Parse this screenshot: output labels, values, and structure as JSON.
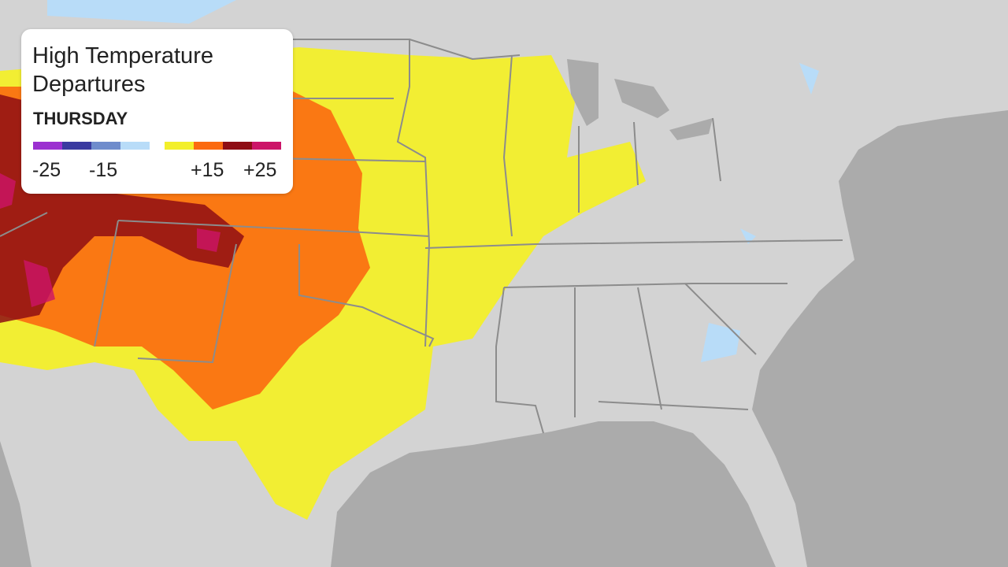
{
  "legend": {
    "title": "High Temperature Departures",
    "day": "THURSDAY",
    "cold_colors": [
      "#9b30d0",
      "#3a3aa0",
      "#6f8ccc",
      "#b8dcf8"
    ],
    "warm_colors": [
      "#f3ef2a",
      "#fb6a10",
      "#8e0d14",
      "#cc1468"
    ],
    "ticks": [
      "-25",
      "-15",
      "+15",
      "+25"
    ]
  },
  "map": {
    "land_color": "#d3d3d3",
    "water_color": "#ababab",
    "border_color": "#8c8c8c"
  }
}
